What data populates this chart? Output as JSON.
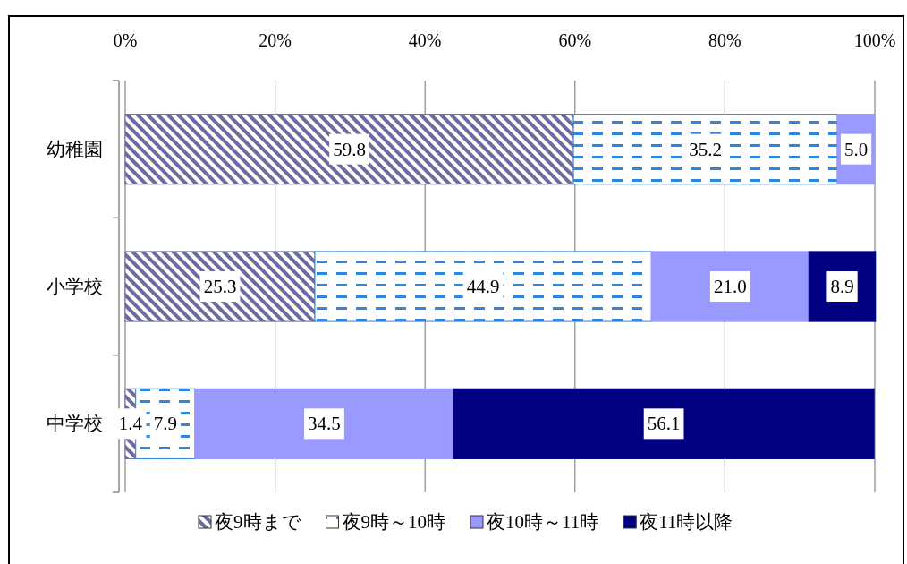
{
  "chart_data": {
    "type": "bar",
    "orientation": "horizontal",
    "stacked": true,
    "categories": [
      "幼稚園",
      "小学校",
      "中学校"
    ],
    "series": [
      {
        "name": "夜9時まで",
        "color": "#6b6ba0",
        "values": [
          59.8,
          25.3,
          1.4
        ],
        "value_labels": [
          "59.8",
          "25.3",
          "1.4"
        ]
      },
      {
        "name": "夜9時～10時",
        "color": "#2e86de",
        "values": [
          35.2,
          44.9,
          7.9
        ],
        "value_labels": [
          "35.2",
          "44.9",
          "7.9"
        ]
      },
      {
        "name": "夜10時～11時",
        "color": "#9999ff",
        "values": [
          5.0,
          21.0,
          34.5
        ],
        "value_labels": [
          "5.0",
          "21.0",
          "34.5"
        ]
      },
      {
        "name": "夜11時以降",
        "color": "#000080",
        "values": [
          null,
          8.9,
          56.1
        ],
        "value_labels": [
          null,
          "8.9",
          "56.1"
        ]
      }
    ],
    "xlim": [
      0,
      100
    ],
    "xticks": [
      {
        "value": 0,
        "label": "0%"
      },
      {
        "value": 20,
        "label": "20%"
      },
      {
        "value": 40,
        "label": "40%"
      },
      {
        "value": 60,
        "label": "60%"
      },
      {
        "value": 80,
        "label": "80%"
      },
      {
        "value": 100,
        "label": "100%"
      }
    ],
    "grid": "x",
    "legend": "bottom"
  }
}
